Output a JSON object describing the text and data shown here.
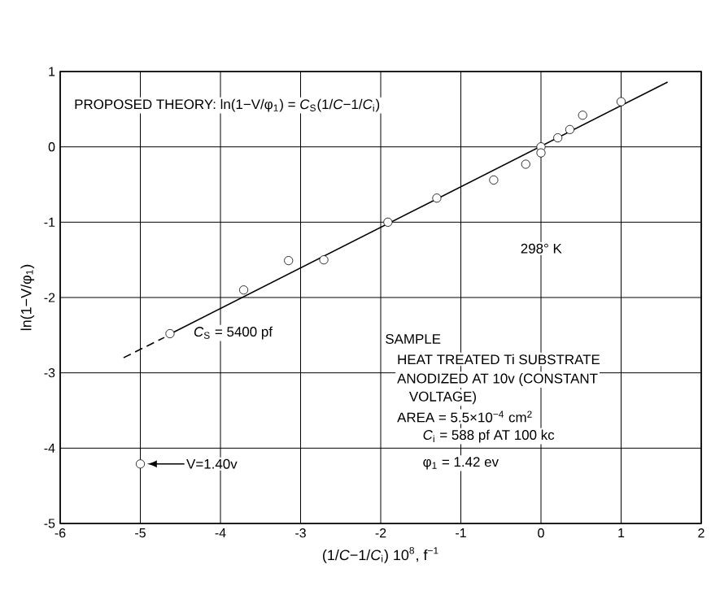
{
  "chart_data": {
    "type": "scatter",
    "xlabel": "(1/*C*−1/*C*$_{i}$) 10$^{8}$, f$^{−1}$",
    "ylabel": "ln(1−V/φ$_{1}$)",
    "series": [
      {
        "type": "scatter",
        "color": "#000000",
        "marker": "circle",
        "x": [
          1.0,
          0.52,
          0.36,
          0.21,
          0.0,
          0.0,
          -0.19,
          -0.59,
          -1.3,
          -1.91,
          -2.71,
          -3.15,
          -3.71,
          -4.63,
          -5.0
        ],
        "values": [
          0.6,
          0.42,
          0.23,
          0.12,
          0.0,
          -0.08,
          -0.23,
          -0.44,
          -0.68,
          -1.0,
          -1.5,
          -1.51,
          -1.9,
          -2.48,
          -4.21
        ]
      },
      {
        "type": "line",
        "color": "#000000",
        "line_style": "solid",
        "x": [
          -4.6,
          1.58
        ],
        "values": [
          -2.47,
          0.86
        ]
      },
      {
        "type": "line",
        "color": "#000000",
        "line_style": "dashed",
        "x": [
          -5.21,
          -4.7
        ],
        "values": [
          -2.8,
          -2.53
        ]
      }
    ],
    "xlim": [
      -6,
      2
    ],
    "ylim": [
      -5,
      1
    ],
    "xticks": [
      -6,
      -5,
      -4,
      -3,
      -2,
      -1,
      0,
      1,
      2
    ],
    "yticks": [
      -5,
      -4,
      -3,
      -2,
      -1,
      0,
      1
    ],
    "grid": true,
    "annotations": [
      "PROPOSED THEORY:  ln(1−V/φ$_{1}$) = *C*$_{S}$(1/*C*−1/*C*$_{i}$)",
      "298° K",
      {
        "text": "*C*$_{S}$ = 5400 pf",
        "x": -4.4,
        "y": -2.47
      },
      "V=1.40v",
      "SAMPLE",
      "HEAT TREATED Ti SUBSTRATE",
      "ANODIZED AT 10v  (CONSTANT",
      "VOLTAGE)",
      "AREA = 5.5×10$^{−4}$ cm$^{2}$",
      "*C*$_{i}$ = 588 pf AT 100 kc",
      "φ$_{1}$ = 1.42 ev"
    ]
  }
}
